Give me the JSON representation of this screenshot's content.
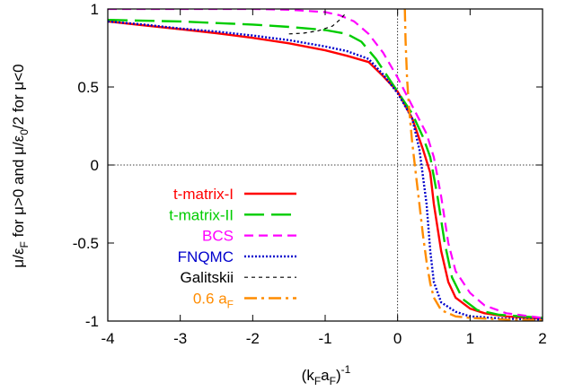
{
  "chart_data": {
    "type": "line",
    "xlabel": "(k_F a_F)^-1",
    "ylabel": "μ/ε_F for μ>0 and μ/ε_0/2 for μ<0",
    "xlim": [
      -4,
      2
    ],
    "ylim": [
      -1,
      1
    ],
    "x_ticks": [
      "-4",
      "-3",
      "-2",
      "-1",
      "0",
      "1",
      "2"
    ],
    "y_ticks": [
      "-1",
      "-0.5",
      "0",
      "0.5",
      "1"
    ],
    "x_tick_values": [
      -4,
      -3,
      -2,
      -1,
      0,
      1,
      2
    ],
    "y_tick_values": [
      -1,
      -0.5,
      0,
      0.5,
      1
    ],
    "zero_lines": true,
    "legend_position": "bottom-left",
    "series": [
      {
        "name": "t-matrix-I",
        "color": "#ff0000",
        "dash": "solid",
        "x": [
          -4,
          -3.5,
          -3,
          -2.5,
          -2,
          -1.5,
          -1,
          -0.7,
          -0.4,
          -0.2,
          0,
          0.2,
          0.35,
          0.45,
          0.5,
          0.6,
          0.7,
          0.8,
          1.0,
          1.2,
          1.5,
          2
        ],
        "y": [
          0.92,
          0.895,
          0.87,
          0.845,
          0.815,
          0.78,
          0.735,
          0.7,
          0.66,
          0.57,
          0.47,
          0.3,
          0.1,
          -0.05,
          -0.25,
          -0.55,
          -0.75,
          -0.85,
          -0.92,
          -0.95,
          -0.97,
          -0.985
        ]
      },
      {
        "name": "t-matrix-II",
        "color": "#00cc00",
        "dash": "long",
        "x": [
          -4,
          -3.5,
          -3,
          -2.5,
          -2,
          -1.5,
          -1,
          -0.7,
          -0.5,
          -0.3,
          -0.1,
          0,
          0.2,
          0.35,
          0.45,
          0.55,
          0.65,
          0.75,
          0.9,
          1.1,
          1.4,
          2
        ],
        "y": [
          0.93,
          0.925,
          0.92,
          0.91,
          0.9,
          0.885,
          0.865,
          0.84,
          0.79,
          0.68,
          0.54,
          0.47,
          0.33,
          0.18,
          0.05,
          -0.2,
          -0.5,
          -0.72,
          -0.86,
          -0.93,
          -0.96,
          -0.98
        ]
      },
      {
        "name": "BCS",
        "color": "#ff00ff",
        "dash": "medium",
        "x": [
          -4,
          -3,
          -2,
          -1.5,
          -1,
          -0.8,
          -0.6,
          -0.4,
          -0.2,
          0,
          0.2,
          0.4,
          0.5,
          0.6,
          0.7,
          0.8,
          1.0,
          1.2,
          1.5,
          2
        ],
        "y": [
          1,
          1,
          1,
          0.995,
          0.98,
          0.96,
          0.92,
          0.84,
          0.72,
          0.56,
          0.38,
          0.2,
          0.05,
          -0.2,
          -0.5,
          -0.68,
          -0.82,
          -0.9,
          -0.95,
          -0.98
        ]
      },
      {
        "name": "FNQMC",
        "color": "#0000cc",
        "dash": "dotted",
        "x": [
          -4,
          -3.5,
          -3,
          -2.5,
          -2,
          -1.5,
          -1,
          -0.7,
          -0.4,
          -0.2,
          0,
          0.2,
          0.3,
          0.4,
          0.45,
          0.5,
          0.6,
          0.8,
          1.0,
          1.5,
          2
        ],
        "y": [
          0.92,
          0.9,
          0.875,
          0.855,
          0.83,
          0.8,
          0.76,
          0.73,
          0.68,
          0.58,
          0.46,
          0.3,
          0.1,
          -0.25,
          -0.55,
          -0.75,
          -0.88,
          -0.94,
          -0.97,
          -0.985,
          -0.99
        ]
      },
      {
        "name": "Galitskii",
        "color": "#000000",
        "dash": "short",
        "x": [
          -1.5,
          -1.3,
          -1.1,
          -0.9,
          -0.8,
          -0.7
        ],
        "y": [
          0.84,
          0.845,
          0.86,
          0.89,
          0.93,
          0.98
        ]
      },
      {
        "name": "0.6 a_F",
        "color": "#ff8c00",
        "dash": "dashdot",
        "x": [
          0.1,
          0.11,
          0.13,
          0.16,
          0.2,
          0.25,
          0.3,
          0.35,
          0.4,
          0.45,
          0.5,
          0.6,
          0.8,
          1.0,
          1.5,
          2
        ],
        "y": [
          1,
          0.8,
          0.55,
          0.35,
          0.15,
          -0.05,
          -0.25,
          -0.45,
          -0.62,
          -0.76,
          -0.85,
          -0.93,
          -0.97,
          -0.98,
          -0.99,
          -0.995
        ]
      }
    ]
  },
  "legend": {
    "items": [
      {
        "label": "t-matrix-I",
        "sub": ""
      },
      {
        "label": "t-matrix-II",
        "sub": ""
      },
      {
        "label": "BCS",
        "sub": ""
      },
      {
        "label": "FNQMC",
        "sub": ""
      },
      {
        "label": "Galitskii",
        "sub": ""
      },
      {
        "label": "0.6 a",
        "sub": "F"
      }
    ]
  },
  "xlabel_parts": {
    "open": "(k",
    "s1": "F",
    "mid": "a",
    "s2": "F",
    "close": ")",
    "sup": "-1"
  },
  "ylabel_parts": {
    "a": "μ/ε",
    "a_sub": "F",
    "b": " for μ>0 and μ/ε",
    "b_sub": "0",
    "c": "/2 for μ<0"
  }
}
